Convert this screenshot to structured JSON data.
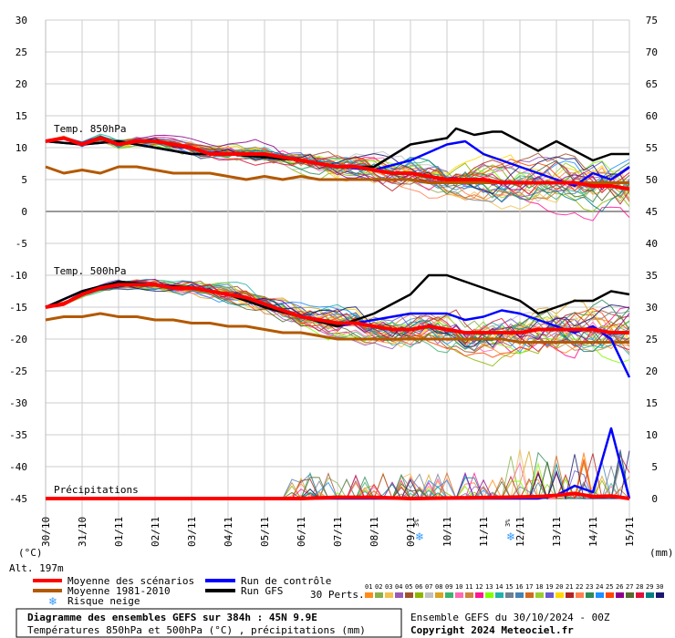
{
  "chart_data": {
    "type": "line",
    "title": "Diagramme des ensembles GEFS sur 384h : 45N 9.9E",
    "subtitle": "Températures 850hPa et 500hPa (°C) , précipitations (mm)",
    "run_info": "Ensemble GEFS du 30/10/2024 - 00Z",
    "copyright": "Copyright 2024 Meteociel.fr",
    "altitude": "Alt. 197m",
    "left_axis_unit": "(°C)",
    "right_axis_unit": "(mm)",
    "yleft_ticks": [
      30,
      25,
      20,
      15,
      10,
      5,
      0,
      -5,
      -10,
      -15,
      -20,
      -25,
      -30,
      -35,
      -40,
      -45
    ],
    "yright_ticks": [
      75,
      70,
      65,
      60,
      55,
      50,
      45,
      40,
      35,
      30,
      25,
      20,
      15,
      10,
      5,
      0
    ],
    "ylim_left": [
      -45,
      30
    ],
    "x_dates": [
      "30/10",
      "31/10",
      "01/11",
      "02/11",
      "03/11",
      "04/11",
      "05/11",
      "06/11",
      "07/11",
      "08/11",
      "09/11",
      "10/11",
      "11/11",
      "12/11",
      "13/11",
      "14/11",
      "15/11"
    ],
    "x_range": [
      0,
      384
    ],
    "grid": true,
    "panel_labels": {
      "t850": "Temp. 850hPa",
      "t500": "Temp. 500hPa",
      "precip": "Précipitations"
    },
    "snow_risk_markers": [
      {
        "x": 246,
        "label": "3%"
      },
      {
        "x": 306,
        "label": "3%"
      }
    ],
    "series": [
      {
        "name": "Moyenne des scénarios",
        "role": "t850",
        "color": "#ff0000",
        "points": [
          [
            0,
            11
          ],
          [
            12,
            11.5
          ],
          [
            24,
            10.5
          ],
          [
            36,
            11.5
          ],
          [
            48,
            10.5
          ],
          [
            60,
            11
          ],
          [
            72,
            11
          ],
          [
            84,
            10.5
          ],
          [
            96,
            10
          ],
          [
            108,
            9
          ],
          [
            120,
            9
          ],
          [
            132,
            9
          ],
          [
            144,
            9
          ],
          [
            156,
            8.5
          ],
          [
            168,
            8
          ],
          [
            180,
            7.5
          ],
          [
            192,
            7
          ],
          [
            204,
            7
          ],
          [
            216,
            6.5
          ],
          [
            228,
            6
          ],
          [
            240,
            6
          ],
          [
            252,
            5.5
          ],
          [
            264,
            5
          ],
          [
            276,
            5
          ],
          [
            288,
            5
          ],
          [
            300,
            4.5
          ],
          [
            312,
            4.5
          ],
          [
            324,
            4.5
          ],
          [
            336,
            4.5
          ],
          [
            348,
            4.5
          ],
          [
            360,
            4
          ],
          [
            372,
            4
          ],
          [
            384,
            3.5
          ]
        ]
      },
      {
        "name": "Moyenne des scénarios",
        "role": "t500",
        "color": "#ff0000",
        "points": [
          [
            0,
            -15
          ],
          [
            12,
            -14.5
          ],
          [
            24,
            -13
          ],
          [
            36,
            -12
          ],
          [
            48,
            -11.5
          ],
          [
            60,
            -11.5
          ],
          [
            72,
            -11.5
          ],
          [
            84,
            -12
          ],
          [
            96,
            -12
          ],
          [
            108,
            -12.5
          ],
          [
            120,
            -13
          ],
          [
            132,
            -13.5
          ],
          [
            144,
            -14.5
          ],
          [
            156,
            -15.5
          ],
          [
            168,
            -16.5
          ],
          [
            180,
            -17
          ],
          [
            192,
            -17.5
          ],
          [
            204,
            -17.5
          ],
          [
            216,
            -18
          ],
          [
            228,
            -18.5
          ],
          [
            240,
            -18.5
          ],
          [
            252,
            -18
          ],
          [
            264,
            -18.5
          ],
          [
            276,
            -19
          ],
          [
            288,
            -19
          ],
          [
            300,
            -19
          ],
          [
            312,
            -19
          ],
          [
            324,
            -18.5
          ],
          [
            336,
            -18.5
          ],
          [
            348,
            -18.5
          ],
          [
            360,
            -18.5
          ],
          [
            372,
            -19
          ],
          [
            384,
            -19
          ]
        ]
      },
      {
        "name": "Moyenne 1981-2010",
        "role": "t850",
        "color": "#b35900",
        "points": [
          [
            0,
            7
          ],
          [
            12,
            6
          ],
          [
            24,
            6.5
          ],
          [
            36,
            6
          ],
          [
            48,
            7
          ],
          [
            60,
            7
          ],
          [
            72,
            6.5
          ],
          [
            84,
            6
          ],
          [
            96,
            6
          ],
          [
            108,
            6
          ],
          [
            120,
            5.5
          ],
          [
            132,
            5
          ],
          [
            144,
            5.5
          ],
          [
            156,
            5
          ],
          [
            168,
            5.5
          ],
          [
            180,
            5
          ],
          [
            192,
            5
          ],
          [
            204,
            5
          ],
          [
            216,
            5
          ],
          [
            228,
            5
          ],
          [
            240,
            5
          ],
          [
            252,
            4.5
          ],
          [
            264,
            4.5
          ],
          [
            276,
            4.5
          ],
          [
            288,
            4.5
          ],
          [
            300,
            4.5
          ],
          [
            312,
            4.5
          ],
          [
            324,
            4.5
          ],
          [
            336,
            4.5
          ],
          [
            348,
            4.5
          ],
          [
            360,
            4.5
          ],
          [
            372,
            4.5
          ],
          [
            384,
            4.5
          ]
        ]
      },
      {
        "name": "Moyenne 1981-2010",
        "role": "t500",
        "color": "#b35900",
        "points": [
          [
            0,
            -17
          ],
          [
            12,
            -16.5
          ],
          [
            24,
            -16.5
          ],
          [
            36,
            -16
          ],
          [
            48,
            -16.5
          ],
          [
            60,
            -16.5
          ],
          [
            72,
            -17
          ],
          [
            84,
            -17
          ],
          [
            96,
            -17.5
          ],
          [
            108,
            -17.5
          ],
          [
            120,
            -18
          ],
          [
            132,
            -18
          ],
          [
            144,
            -18.5
          ],
          [
            156,
            -19
          ],
          [
            168,
            -19
          ],
          [
            180,
            -19.5
          ],
          [
            192,
            -20
          ],
          [
            204,
            -20
          ],
          [
            216,
            -20
          ],
          [
            228,
            -20
          ],
          [
            240,
            -20
          ],
          [
            252,
            -20
          ],
          [
            264,
            -20
          ],
          [
            276,
            -20
          ],
          [
            288,
            -20
          ],
          [
            300,
            -20
          ],
          [
            312,
            -20.5
          ],
          [
            324,
            -20.5
          ],
          [
            336,
            -20.5
          ],
          [
            348,
            -20.5
          ],
          [
            360,
            -20.5
          ],
          [
            372,
            -20.5
          ],
          [
            384,
            -20.5
          ]
        ]
      },
      {
        "name": "Run de contrôle",
        "role": "t850",
        "color": "#0000ff",
        "points": [
          [
            0,
            11
          ],
          [
            24,
            10.5
          ],
          [
            48,
            11
          ],
          [
            72,
            10
          ],
          [
            96,
            9
          ],
          [
            120,
            9
          ],
          [
            144,
            8.5
          ],
          [
            168,
            8
          ],
          [
            192,
            7
          ],
          [
            216,
            6.5
          ],
          [
            240,
            8
          ],
          [
            264,
            10.5
          ],
          [
            276,
            11
          ],
          [
            288,
            9
          ],
          [
            300,
            8
          ],
          [
            312,
            7
          ],
          [
            324,
            6
          ],
          [
            336,
            5
          ],
          [
            348,
            4
          ],
          [
            360,
            6
          ],
          [
            372,
            5
          ],
          [
            384,
            7
          ]
        ]
      },
      {
        "name": "Run de contrôle",
        "role": "t500",
        "color": "#0000ff",
        "points": [
          [
            0,
            -15
          ],
          [
            24,
            -12.5
          ],
          [
            48,
            -11
          ],
          [
            72,
            -11.5
          ],
          [
            96,
            -12
          ],
          [
            120,
            -13
          ],
          [
            144,
            -15
          ],
          [
            168,
            -16.5
          ],
          [
            192,
            -18
          ],
          [
            216,
            -17
          ],
          [
            240,
            -16
          ],
          [
            264,
            -16
          ],
          [
            276,
            -17
          ],
          [
            288,
            -16.5
          ],
          [
            300,
            -15.5
          ],
          [
            312,
            -16
          ],
          [
            324,
            -17
          ],
          [
            336,
            -18
          ],
          [
            348,
            -19
          ],
          [
            360,
            -18
          ],
          [
            372,
            -20
          ],
          [
            384,
            -26
          ]
        ]
      },
      {
        "name": "Run GFS",
        "role": "t850",
        "color": "#000000",
        "points": [
          [
            0,
            11
          ],
          [
            24,
            10.5
          ],
          [
            48,
            11
          ],
          [
            72,
            10
          ],
          [
            96,
            9
          ],
          [
            120,
            9
          ],
          [
            144,
            8.5
          ],
          [
            168,
            8
          ],
          [
            192,
            7
          ],
          [
            216,
            7
          ],
          [
            240,
            10.5
          ],
          [
            264,
            11.5
          ],
          [
            270,
            13
          ],
          [
            282,
            12
          ],
          [
            294,
            12.5
          ],
          [
            300,
            12.5
          ],
          [
            312,
            11
          ],
          [
            324,
            9.5
          ],
          [
            336,
            11
          ],
          [
            348,
            9.5
          ],
          [
            360,
            8
          ],
          [
            372,
            9
          ],
          [
            384,
            9
          ]
        ]
      },
      {
        "name": "Run GFS",
        "role": "t500",
        "color": "#000000",
        "points": [
          [
            0,
            -15
          ],
          [
            24,
            -12.5
          ],
          [
            48,
            -11
          ],
          [
            72,
            -11.5
          ],
          [
            96,
            -12
          ],
          [
            120,
            -13
          ],
          [
            144,
            -15
          ],
          [
            168,
            -16.5
          ],
          [
            192,
            -18
          ],
          [
            216,
            -16
          ],
          [
            240,
            -13
          ],
          [
            252,
            -10
          ],
          [
            264,
            -10
          ],
          [
            276,
            -11
          ],
          [
            288,
            -12
          ],
          [
            300,
            -13
          ],
          [
            312,
            -14
          ],
          [
            324,
            -16
          ],
          [
            336,
            -15
          ],
          [
            348,
            -14
          ],
          [
            360,
            -14
          ],
          [
            372,
            -12.5
          ],
          [
            384,
            -13
          ]
        ]
      },
      {
        "name": "Moyenne des scénarios",
        "role": "precip",
        "color": "#ff0000",
        "points": [
          [
            0,
            0
          ],
          [
            48,
            0
          ],
          [
            108,
            0
          ],
          [
            168,
            0
          ],
          [
            192,
            0.2
          ],
          [
            216,
            0.2
          ],
          [
            240,
            0
          ],
          [
            270,
            0.1
          ],
          [
            300,
            0.2
          ],
          [
            324,
            0.3
          ],
          [
            336,
            0.5
          ],
          [
            348,
            0.8
          ],
          [
            360,
            0.3
          ],
          [
            372,
            0.4
          ],
          [
            384,
            0
          ]
        ]
      },
      {
        "name": "Run de contrôle",
        "role": "precip",
        "color": "#0000ff",
        "points": [
          [
            0,
            0
          ],
          [
            324,
            0
          ],
          [
            336,
            0.5
          ],
          [
            348,
            2
          ],
          [
            360,
            1
          ],
          [
            372,
            11
          ],
          [
            384,
            0
          ]
        ]
      }
    ],
    "legend": {
      "entries": [
        {
          "name": "Moyenne des scénarios",
          "color": "#ff0000"
        },
        {
          "name": "Moyenne 1981-2010",
          "color": "#b35900"
        },
        {
          "name": "Risque neige",
          "color": "#3399ff",
          "icon": "snowflake"
        },
        {
          "name": "Run de contrôle",
          "color": "#0000ff"
        },
        {
          "name": "Run GFS",
          "color": "#000000"
        }
      ],
      "perts_label": "30 Perts.",
      "perts_numbers": [
        "01",
        "02",
        "03",
        "04",
        "05",
        "06",
        "07",
        "08",
        "09",
        "10",
        "11",
        "12",
        "13",
        "14",
        "15",
        "16",
        "17",
        "18",
        "19",
        "20",
        "21",
        "22",
        "23",
        "24",
        "25",
        "26",
        "27",
        "28",
        "29",
        "30"
      ],
      "perts_colors": [
        "#ff8c1a",
        "#88b04b",
        "#f2c14e",
        "#9b59b6",
        "#a0522d",
        "#8db600",
        "#c0c0c0",
        "#daa520",
        "#3cb371",
        "#ff69b4",
        "#cd853f",
        "#ff1493",
        "#7fff00",
        "#20b2aa",
        "#708090",
        "#4682b4",
        "#d2691e",
        "#9acd32",
        "#6a5acd",
        "#ffd700",
        "#b22222",
        "#ff7f50",
        "#2e8b57",
        "#1e90ff",
        "#ff4500",
        "#8b008b",
        "#556b2f",
        "#dc143c",
        "#008080",
        "#191970"
      ]
    }
  }
}
